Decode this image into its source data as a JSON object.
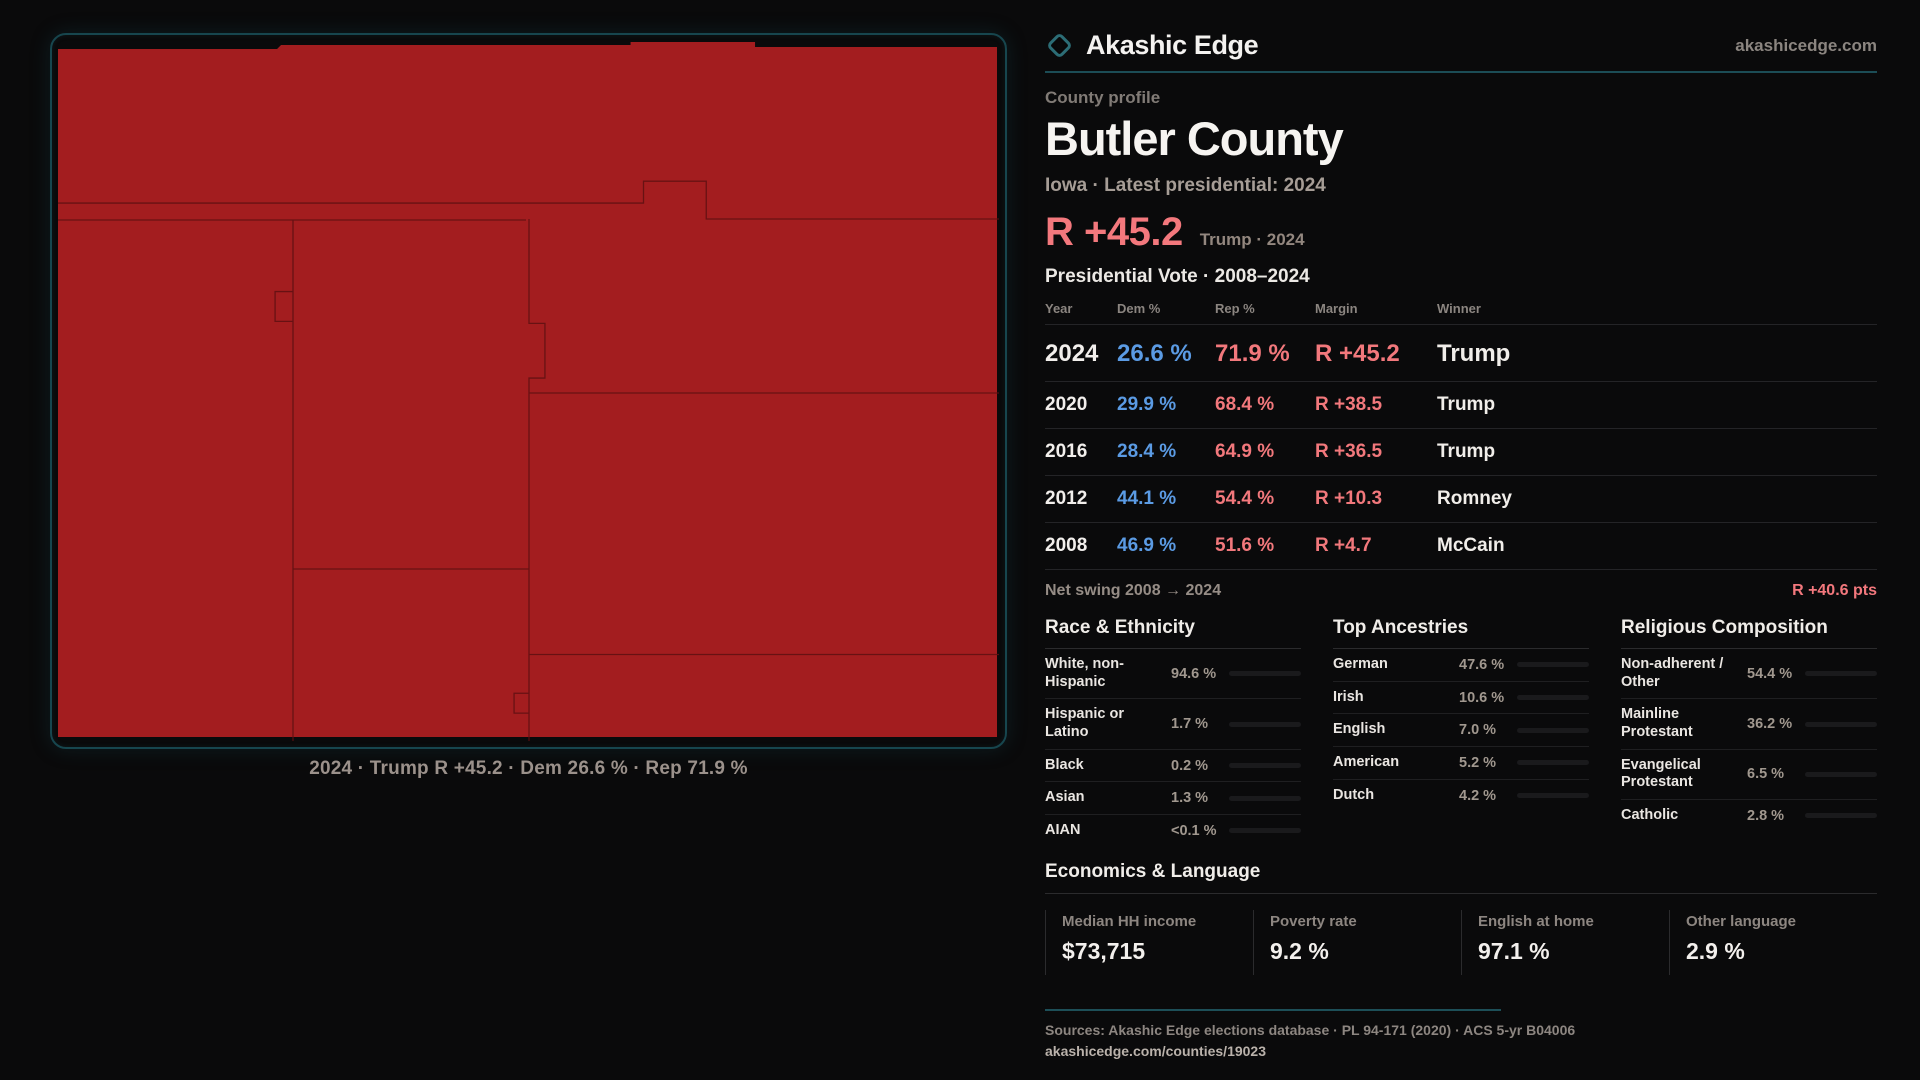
{
  "brand": {
    "name": "Akashic Edge",
    "domain": "akashicedge.com",
    "accent_teal": "#1c4d56"
  },
  "profile": {
    "eyebrow": "County profile",
    "title": "Butler County",
    "subtitle": "Iowa · Latest presidential: 2024",
    "headline_margin": "R +45.2",
    "headline_context": "Trump · 2024",
    "vote_section_title": "Presidential Vote · 2008–2024"
  },
  "map": {
    "caption": "2024 · Trump R +45.2 · Dem 26.6 % · Rep 71.9 %",
    "fill_color": "#a31d1f",
    "boundary_color": "#5e1012",
    "border_color": "#17464e"
  },
  "vote_table": {
    "columns": [
      "Year",
      "Dem %",
      "Rep %",
      "Margin",
      "Winner"
    ],
    "rows": [
      {
        "year": "2024",
        "dem": "26.6 %",
        "rep": "71.9 %",
        "margin": "R +45.2",
        "winner": "Trump",
        "highlight": true
      },
      {
        "year": "2020",
        "dem": "29.9 %",
        "rep": "68.4 %",
        "margin": "R +38.5",
        "winner": "Trump",
        "highlight": false
      },
      {
        "year": "2016",
        "dem": "28.4 %",
        "rep": "64.9 %",
        "margin": "R +36.5",
        "winner": "Trump",
        "highlight": false
      },
      {
        "year": "2012",
        "dem": "44.1 %",
        "rep": "54.4 %",
        "margin": "R +10.3",
        "winner": "Romney",
        "highlight": false
      },
      {
        "year": "2008",
        "dem": "46.9 %",
        "rep": "51.6 %",
        "margin": "R +4.7",
        "winner": "McCain",
        "highlight": false
      }
    ]
  },
  "net_swing": {
    "label": "Net swing 2008 → 2024",
    "value": "R +40.6 pts"
  },
  "demographics": {
    "race": {
      "title": "Race & Ethnicity",
      "rows": [
        {
          "label": "White, non-Hispanic",
          "value": "94.6 %",
          "pct": 94.6,
          "color": "#9fb1c9"
        },
        {
          "label": "Hispanic or Latino",
          "value": "1.7 %",
          "pct": 1.7,
          "color": "#e8931f"
        },
        {
          "label": "Black",
          "value": "0.2 %",
          "pct": 0.2,
          "color": "#9fb1c9"
        },
        {
          "label": "Asian",
          "value": "1.3 %",
          "pct": 1.3,
          "color": "#2ed3a2"
        },
        {
          "label": "AIAN",
          "value": "<0.1 %",
          "pct": 0,
          "color": "#9fb1c9"
        }
      ]
    },
    "ancestries": {
      "title": "Top Ancestries",
      "rows": [
        {
          "label": "German",
          "value": "47.6 %",
          "pct": 47.6,
          "color": "#9fb1c9"
        },
        {
          "label": "Irish",
          "value": "10.6 %",
          "pct": 10.6,
          "color": "#9fb1c9"
        },
        {
          "label": "English",
          "value": "7.0 %",
          "pct": 7.0,
          "color": "#9fb1c9"
        },
        {
          "label": "American",
          "value": "5.2 %",
          "pct": 5.2,
          "color": "#9fb1c9"
        },
        {
          "label": "Dutch",
          "value": "4.2 %",
          "pct": 4.2,
          "color": "#9fb1c9"
        }
      ]
    },
    "religion": {
      "title": "Religious Composition",
      "rows": [
        {
          "label": "Non-adherent / Other",
          "value": "54.4 %",
          "pct": 54.4,
          "color": "#6e7c90"
        },
        {
          "label": "Mainline Protestant",
          "value": "36.2 %",
          "pct": 36.2,
          "color": "#4a90e2"
        },
        {
          "label": "Evangelical Protestant",
          "value": "6.5 %",
          "pct": 6.5,
          "color": "#e06a6a"
        },
        {
          "label": "Catholic",
          "value": "2.8 %",
          "pct": 2.8,
          "color": "#e0a41c"
        }
      ]
    }
  },
  "economics": {
    "title": "Economics & Language",
    "stats": [
      {
        "label": "Median HH income",
        "value": "$73,715"
      },
      {
        "label": "Poverty rate",
        "value": "9.2 %"
      },
      {
        "label": "English at home",
        "value": "97.1 %"
      },
      {
        "label": "Other language",
        "value": "2.9 %"
      }
    ]
  },
  "footer": {
    "sources": "Sources: Akashic Edge elections database · PL 94-171 (2020) · ACS 5-yr B04006",
    "permalink": "akashicedge.com/counties/19023"
  }
}
